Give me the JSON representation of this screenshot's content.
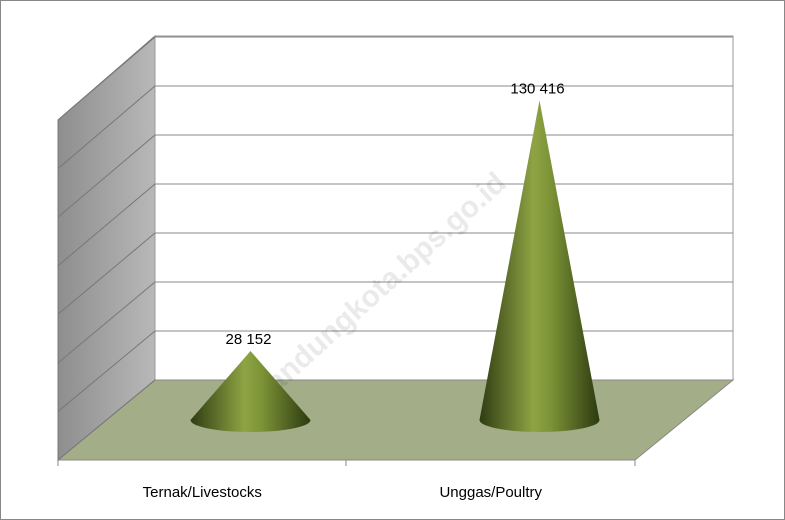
{
  "chart_data": {
    "type": "cone3d",
    "categories": [
      "Ternak/Livestocks",
      "Unggas/Poultry"
    ],
    "values": [
      28152,
      130416
    ],
    "value_labels": [
      "28 152",
      "130 416"
    ],
    "color": "#5a6e26",
    "ylim": [
      0,
      140000
    ],
    "yticks": [
      0,
      20000,
      40000,
      60000,
      80000,
      100000,
      120000,
      140000
    ],
    "grid": true,
    "watermark": "bandungkota.bps.go.id"
  }
}
